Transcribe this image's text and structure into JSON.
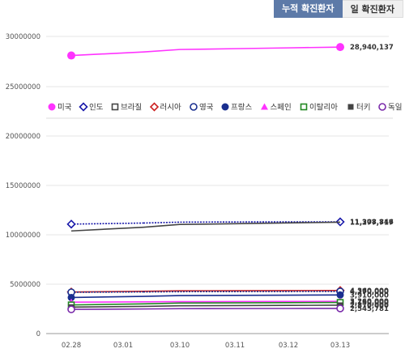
{
  "tabs": [
    {
      "label": "누적 확진환자",
      "active": true
    },
    {
      "label": "일 확진환자",
      "active": false
    }
  ],
  "chart_data": [
    {
      "type": "line",
      "x": [
        "02.28",
        "03.01",
        "03.10",
        "03.11",
        "03.12",
        "03.13"
      ],
      "ylim": [
        25000000,
        30000000
      ],
      "yticks": [
        25000000,
        30000000
      ],
      "series": [
        {
          "name": "미국",
          "color": "#ff33ff",
          "marker": "circle-filled",
          "dash": "solid",
          "values": [
            28100000,
            28200000,
            28700000,
            28780000,
            28860000,
            28940137
          ],
          "end_label": "28,940,137"
        }
      ]
    },
    {
      "type": "line",
      "x": [
        "02.28",
        "03.01",
        "03.10",
        "03.11",
        "03.12",
        "03.13"
      ],
      "xlabels": [
        "02.28",
        "03.01",
        "03.10",
        "03.11",
        "03.12",
        "03.13"
      ],
      "ylim": [
        0,
        20000000
      ],
      "yticks": [
        0,
        5000000,
        10000000,
        15000000,
        20000000
      ],
      "legend": [
        {
          "name": "미국",
          "color": "#ff33ff",
          "marker": "circle-filled"
        },
        {
          "name": "인도",
          "color": "#1a1aaa",
          "marker": "diamond-open"
        },
        {
          "name": "브라질",
          "color": "#444444",
          "marker": "square-open"
        },
        {
          "name": "러시아",
          "color": "#cc2222",
          "marker": "diamond-open"
        },
        {
          "name": "영국",
          "color": "#1a2f8f",
          "marker": "circle-open"
        },
        {
          "name": "프랑스",
          "color": "#1a2f8f",
          "marker": "circle-filled"
        },
        {
          "name": "스페인",
          "color": "#ff33ff",
          "marker": "triangle-filled"
        },
        {
          "name": "이탈리아",
          "color": "#228822",
          "marker": "square-open"
        },
        {
          "name": "터키",
          "color": "#444444",
          "marker": "square-filled"
        },
        {
          "name": "독일",
          "color": "#7a2aaa",
          "marker": "circle-open"
        }
      ],
      "series": [
        {
          "name": "인도",
          "color": "#1a1aaa",
          "marker": "diamond-open",
          "dash": "dotted",
          "values": [
            11080000,
            11100000,
            11280000,
            11300000,
            11310000,
            11308846
          ],
          "end_label": "11,308,846"
        },
        {
          "name": "브라질",
          "color": "#444444",
          "marker": "none",
          "dash": "solid",
          "values": [
            10390000,
            10480000,
            11050000,
            11120000,
            11200000,
            11277717
          ],
          "end_label": "11,277,717"
        },
        {
          "name": "러시아",
          "color": "#cc2222",
          "marker": "diamond-open",
          "dash": "solid",
          "values": [
            4210000,
            4220000,
            4330000,
            4340000,
            4350000,
            4360000
          ],
          "end_label": "4,360,000"
        },
        {
          "name": "영국",
          "color": "#1a2f8f",
          "marker": "circle-open",
          "dash": "dotted",
          "values": [
            4180000,
            4190000,
            4240000,
            4250000,
            4260000,
            4270000
          ],
          "end_label": "4,270,000"
        },
        {
          "name": "프랑스",
          "color": "#1a2f8f",
          "marker": "circle-filled",
          "dash": "solid",
          "values": [
            3650000,
            3680000,
            3850000,
            3870000,
            3890000,
            3910000
          ],
          "end_label": "3,910,000"
        },
        {
          "name": "스페인",
          "color": "#ff33ff",
          "marker": "triangle-filled",
          "dash": "solid",
          "values": [
            3180000,
            3190000,
            3230000,
            3240000,
            3250000,
            3260000
          ],
          "end_label": "3,260,000"
        },
        {
          "name": "이탈리아",
          "color": "#228822",
          "marker": "square-open",
          "dash": "solid",
          "values": [
            2900000,
            2930000,
            3090000,
            3110000,
            3130000,
            3150000
          ],
          "end_label": "3,150,000"
        },
        {
          "name": "터키",
          "color": "#444444",
          "marker": "square-filled",
          "dash": "solid",
          "values": [
            2680000,
            2700000,
            2810000,
            2830000,
            2850000,
            2870000
          ],
          "end_label": "2,870,000"
        },
        {
          "name": "독일",
          "color": "#7a2aaa",
          "marker": "circle-open",
          "dash": "solid",
          "values": [
            2450000,
            2460000,
            2520000,
            2530000,
            2540000,
            2545781
          ],
          "end_label": "2,545,781"
        }
      ]
    }
  ]
}
